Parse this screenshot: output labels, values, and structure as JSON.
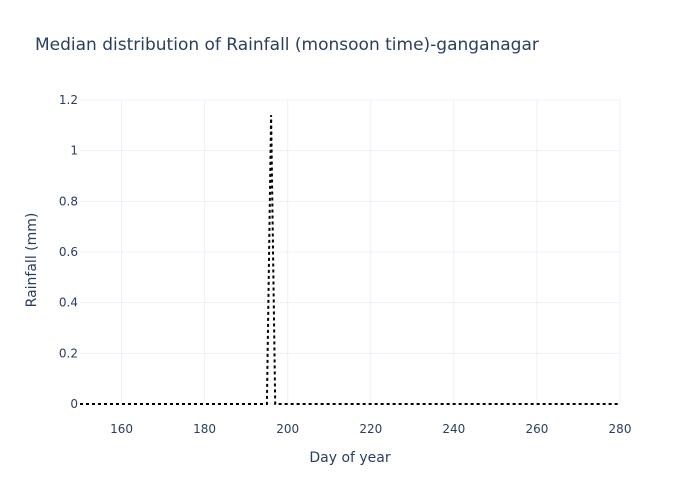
{
  "chart_data": {
    "type": "line",
    "title": "Median distribution of Rainfall (monsoon time)-ganganagar",
    "xlabel": "Day of year",
    "ylabel": "Rainfall (mm)",
    "xlim": [
      150,
      280
    ],
    "ylim": [
      0,
      1.2
    ],
    "x_ticks": [
      160,
      180,
      200,
      220,
      240,
      260,
      280
    ],
    "y_ticks": [
      0,
      0.2,
      0.4,
      0.6,
      0.8,
      1,
      1.2
    ],
    "x_tick_labels": [
      "160",
      "180",
      "200",
      "220",
      "240",
      "260",
      "280"
    ],
    "y_tick_labels": [
      "0",
      "0.2",
      "0.4",
      "0.6",
      "0.8",
      "1",
      "1.2"
    ],
    "grid": true,
    "legend": "none",
    "line_color": "#000000",
    "line_style": "dotted",
    "series": [
      {
        "x": [
          150,
          195,
          196,
          197,
          280
        ],
        "y": [
          0,
          0,
          1.14,
          0,
          0
        ]
      }
    ]
  }
}
